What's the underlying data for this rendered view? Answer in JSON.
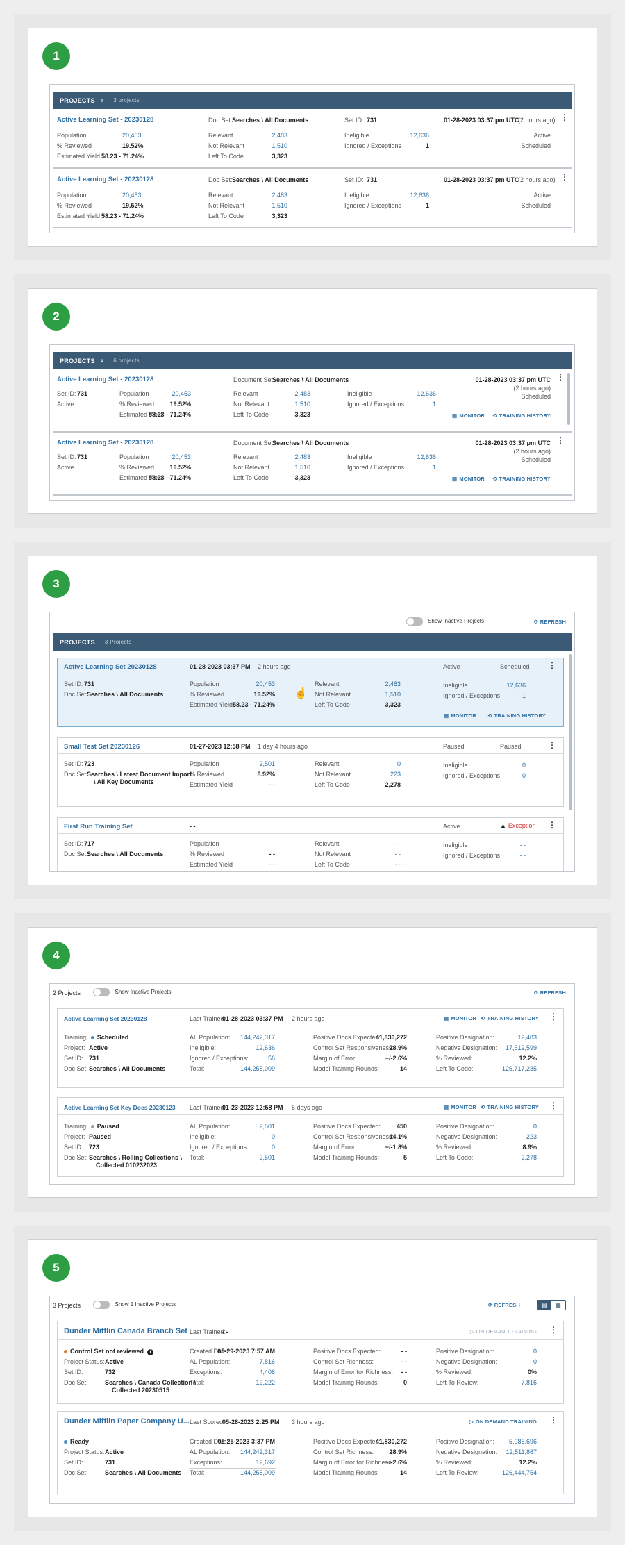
{
  "s1": {
    "num": "1",
    "header": {
      "title": "PROJECTS",
      "count": "3 projects"
    },
    "rows": [
      {
        "name": "Active Learning Set - 20230128",
        "docset_label": "Doc Set:",
        "docset": "Searches \\ All Documents",
        "setid_label": "Set ID:",
        "setid": "731",
        "date": "01-28-2023 03:37 pm UTC",
        "ago": "(2 hours ago)",
        "population_label": "Population",
        "population": "20,453",
        "reviewed_label": "% Reviewed",
        "reviewed": "19.52%",
        "yield_label": "Estimated Yield",
        "yield": "58.23 - 71.24%",
        "relevant_label": "Relevant",
        "relevant": "2,483",
        "notrel_label": "Not Relevant",
        "notrel": "1,510",
        "left_label": "Left To Code",
        "left": "3,323",
        "inelig_label": "Ineligible",
        "inelig": "12,636",
        "ignored_label": "Ignored / Exceptions",
        "ignored": "1",
        "status1": "Active",
        "status2": "Scheduled"
      },
      {
        "name": "Active Learning Set - 20230128",
        "docset_label": "Doc Set:",
        "docset": "Searches \\ All Documents",
        "setid_label": "Set ID:",
        "setid": "731",
        "date": "01-28-2023 03:37 pm UTC",
        "ago": "(2 hours ago)",
        "population_label": "Population",
        "population": "20,453",
        "reviewed_label": "% Reviewed",
        "reviewed": "19.52%",
        "yield_label": "Estimated Yield",
        "yield": "58.23 - 71.24%",
        "relevant_label": "Relevant",
        "relevant": "2,483",
        "notrel_label": "Not Relevant",
        "notrel": "1,510",
        "left_label": "Left To Code",
        "left": "3,323",
        "inelig_label": "Ineligible",
        "inelig": "12,636",
        "ignored_label": "Ignored / Exceptions",
        "ignored": "1",
        "status1": "Active",
        "status2": "Scheduled"
      }
    ]
  },
  "s2": {
    "num": "2",
    "header": {
      "title": "PROJECTS",
      "count": "6 projects"
    },
    "rows": [
      {
        "name": "Active Learning Set - 20230128",
        "docset_label": "Document Set:",
        "docset": "Searches \\ All Documents",
        "date": "01-28-2023 03:37 pm UTC",
        "ago": "(2 hours ago)",
        "status2": "Scheduled",
        "setid_label": "Set ID:",
        "setid": "731",
        "status1": "Active",
        "population_label": "Population",
        "population": "20,453",
        "reviewed_label": "% Reviewed",
        "reviewed": "19.52%",
        "yield_label": "Estimated Yield",
        "yield": "58.23 - 71.24%",
        "relevant_label": "Relevant",
        "relevant": "2,483",
        "notrel_label": "Not Relevant",
        "notrel": "1,510",
        "left_label": "Left To Code",
        "left": "3,323",
        "inelig_label": "Ineligible",
        "inelig": "12,636",
        "ignored_label": "Ignored / Exceptions",
        "ignored": "1",
        "monitor": "MONITOR",
        "history": "TRAINING HISTORY"
      },
      {
        "name": "Active Learning Set - 20230128",
        "docset_label": "Document Set:",
        "docset": "Searches \\ All Documents",
        "date": "01-28-2023 03:37 pm UTC",
        "ago": "(2 hours ago)",
        "status2": "Scheduled",
        "setid_label": "Set ID:",
        "setid": "731",
        "status1": "Active",
        "population_label": "Population",
        "population": "20,453",
        "reviewed_label": "% Reviewed",
        "reviewed": "19.52%",
        "yield_label": "Estimated Yield",
        "yield": "58.23 - 71.24%",
        "relevant_label": "Relevant",
        "relevant": "2,483",
        "notrel_label": "Not Relevant",
        "notrel": "1,510",
        "left_label": "Left To Code",
        "left": "3,323",
        "inelig_label": "Ineligible",
        "inelig": "12,636",
        "ignored_label": "Ignored / Exceptions",
        "ignored": "1",
        "monitor": "MONITOR",
        "history": "TRAINING HISTORY"
      }
    ]
  },
  "s3": {
    "num": "3",
    "show_inactive": "Show Inactive Projects",
    "refresh": "REFRESH",
    "header": {
      "title": "PROJECTS",
      "count": "3 Projects"
    },
    "cards": [
      {
        "name": "Active Learning Set 20230128",
        "date": "01-28-2023 03:37 PM",
        "ago": "2 hours ago",
        "status1": "Active",
        "status2": "Scheduled",
        "setid_label": "Set ID:",
        "setid": "731",
        "docset_label": "Doc Set:",
        "docset": "Searches \\ All Documents",
        "docset2": "",
        "population_label": "Population",
        "population": "20,453",
        "reviewed_label": "% Reviewed",
        "reviewed": "19.52%",
        "yield_label": "Estimated Yield",
        "yield": "58.23 - 71.24%",
        "relevant_label": "Relevant",
        "relevant": "2,483",
        "notrel_label": "Not Relevant",
        "notrel": "1,510",
        "left_label": "Left To Code",
        "left": "3,323",
        "inelig_label": "Ineligible",
        "inelig": "12,636",
        "ignored_label": "Ignored / Exceptions",
        "ignored": "1",
        "monitor": "MONITOR",
        "history": "TRAINING HISTORY"
      },
      {
        "name": "Small Test Set 20230126",
        "date": "01-27-2023 12:58 PM",
        "ago": "1 day 4 hours ago",
        "status1": "Paused",
        "status2": "Paused",
        "setid_label": "Set ID:",
        "setid": "723",
        "docset_label": "Doc Set:",
        "docset": "Searches \\ Latest Document Import",
        "docset2": "\\ All Key Documents",
        "population_label": "Population",
        "population": "2,501",
        "reviewed_label": "% Reviewed",
        "reviewed": "8.92%",
        "yield_label": "Estimated Yield",
        "yield": "- -",
        "relevant_label": "Relevant",
        "relevant": "0",
        "notrel_label": "Not Relevant",
        "notrel": "223",
        "left_label": "Left To Code",
        "left": "2,278",
        "inelig_label": "Ineligible",
        "inelig": "0",
        "ignored_label": "Ignored / Exceptions",
        "ignored": "0"
      },
      {
        "name": "First Run Training Set",
        "date": "- -",
        "ago": "",
        "status1": "Active",
        "status2": "Exception",
        "setid_label": "Set ID:",
        "setid": "717",
        "docset_label": "Doc Set:",
        "docset": "Searches \\ All Documents",
        "docset2": "",
        "population_label": "Population",
        "population": "- -",
        "reviewed_label": "% Reviewed",
        "reviewed": "- -",
        "yield_label": "Estimated Yield",
        "yield": "- -",
        "relevant_label": "Relevant",
        "relevant": "- -",
        "notrel_label": "Not Relevant",
        "notrel": "- -",
        "left_label": "Left To Code",
        "left": "- -",
        "inelig_label": "Ineligible",
        "inelig": "- -",
        "ignored_label": "Ignored / Exceptions",
        "ignored": "- -"
      }
    ]
  },
  "s4": {
    "num": "4",
    "count": "2 Projects",
    "show_inactive": "Show Inactive Projects",
    "refresh": "REFRESH",
    "cards": [
      {
        "name": "Active Learning Set 20230128",
        "trained_label": "Last Trained:",
        "trained": "01-28-2023 03:37 PM",
        "ago": "2 hours ago",
        "monitor": "MONITOR",
        "history": "TRAINING HISTORY",
        "training_label": "Training:",
        "training": "Scheduled",
        "dot": "#3b8fd0",
        "project_label": "Project:",
        "project": "Active",
        "setid_label": "Set ID:",
        "setid": "731",
        "docset_label": "Doc Set:",
        "docset": "Searches \\ All Documents",
        "docset2": "",
        "alpop_label": "AL Population:",
        "alpop": "144,242,317",
        "inelig_label": "Ineligible:",
        "inelig": "12,636",
        "ignored_label": "Ignored / Exceptions:",
        "ignored": "56",
        "total_label": "Total:",
        "total": "144,255,009",
        "posexp_label": "Positive Docs Expected:",
        "posexp": "41,830,272",
        "csr_label": "Control Set Responsiveness:",
        "csr": "28.9%",
        "moe_label": "Margin of Error:",
        "moe": "+/-2.6%",
        "mtr_label": "Model Training Rounds:",
        "mtr": "14",
        "posdes_label": "Positive Designation:",
        "posdes": "12,483",
        "negdes_label": "Negative Designation:",
        "negdes": "17,512,599",
        "rev_label": "% Reviewed:",
        "rev": "12.2%",
        "left_label": "Left To Code:",
        "left": "126,717,235"
      },
      {
        "name": "Active Learning Set Key Docs 20230123",
        "trained_label": "Last Trained:",
        "trained": "01-23-2023 12:58 PM",
        "ago": "5 days ago",
        "monitor": "MONITOR",
        "history": "TRAINING HISTORY",
        "training_label": "Training:",
        "training": "Paused",
        "dot": "#9aa0a6",
        "project_label": "Project:",
        "project": "Paused",
        "setid_label": "Set ID:",
        "setid": "723",
        "docset_label": "Doc Set:",
        "docset": "Searches \\ Rolling Collections \\",
        "docset2": "Collected 010232023",
        "alpop_label": "AL Population:",
        "alpop": "2,501",
        "inelig_label": "Ineligible:",
        "inelig": "0",
        "ignored_label": "Ignored / Exceptions:",
        "ignored": "0",
        "total_label": "Total:",
        "total": "2,501",
        "posexp_label": "Positive Docs Expected:",
        "posexp": "450",
        "csr_label": "Control Set Responsiveness:",
        "csr": "14.1%",
        "moe_label": "Margin of Error:",
        "moe": "+/-1.8%",
        "mtr_label": "Model Training Rounds:",
        "mtr": "5",
        "posdes_label": "Positive Designation:",
        "posdes": "0",
        "negdes_label": "Negative Designation:",
        "negdes": "223",
        "rev_label": "% Reviewed:",
        "rev": "8.9%",
        "left_label": "Left To Code:",
        "left": "2,278"
      }
    ]
  },
  "s5": {
    "num": "5",
    "count": "3 Projects",
    "show_inactive": "Show 1 Inactive Projects",
    "refresh": "REFRESH",
    "cards": [
      {
        "name": "Dunder Mifflin Canada Branch Set",
        "trained_label": "Last Trained:",
        "trained": "- -",
        "ago": "",
        "ondemand": "ON DEMAND TRAINING",
        "ondemand_disabled": true,
        "status": "Control Set not reviewed",
        "dot": "#e07b2a",
        "projstat_label": "Project Status:",
        "projstat": "Active",
        "setid_label": "Set ID:",
        "setid": "732",
        "docset_label": "Doc Set:",
        "docset": "Searches \\ Canada Collection \\",
        "docset2": "Collected 20230515",
        "created_label": "Created Date:",
        "created": "05-29-2023 7:57 AM",
        "alpop_label": "AL Population:",
        "alpop": "7,816",
        "exc_label": "Exceptions:",
        "exc": "4,406",
        "total_label": "Total:",
        "total": "12,222",
        "posexp_label": "Positive Docs Expected:",
        "posexp": "- -",
        "csr_label": "Control Set Richness:",
        "csr": "- -",
        "moe_label": "Margin of Error for Richness:",
        "moe": "- -",
        "mtr_label": "Model Training Rounds:",
        "mtr": "0",
        "posdes_label": "Positive Designation:",
        "posdes": "0",
        "negdes_label": "Negative Designation:",
        "negdes": "0",
        "rev_label": "% Reviewed:",
        "rev": "0%",
        "left_label": "Left To Review:",
        "left": "7,816"
      },
      {
        "name": "Dunder Mifflin Paper Company U...",
        "trained_label": "Last Scored:",
        "trained": "05-28-2023 2:25 PM",
        "ago": "3 hours ago",
        "ondemand": "ON DEMAND TRAINING",
        "ondemand_disabled": false,
        "status": "Ready",
        "dot": "#3b8fd0",
        "projstat_label": "Project Status:",
        "projstat": "Active",
        "setid_label": "Set ID:",
        "setid": "731",
        "docset_label": "Doc Set:",
        "docset": "Searches \\ All Documents",
        "docset2": "",
        "created_label": "Created Date:",
        "created": "05-25-2023 3:37 PM",
        "alpop_label": "AL Population:",
        "alpop": "144,242,317",
        "exc_label": "Exceptions:",
        "exc": "12,692",
        "total_label": "Total:",
        "total": "144,255,009",
        "posexp_label": "Positive Docs Expected:",
        "posexp": "41,830,272",
        "csr_label": "Control Set Richness:",
        "csr": "28.9%",
        "moe_label": "Margin of Error for Richness:",
        "moe": "+/-2.6%",
        "mtr_label": "Model Training Rounds:",
        "mtr": "14",
        "posdes_label": "Positive Designation:",
        "posdes": "5,085,696",
        "negdes_label": "Negative Designation:",
        "negdes": "12,511,867",
        "rev_label": "% Reviewed:",
        "rev": "12.2%",
        "left_label": "Left To Review:",
        "left": "126,444,754"
      }
    ]
  }
}
